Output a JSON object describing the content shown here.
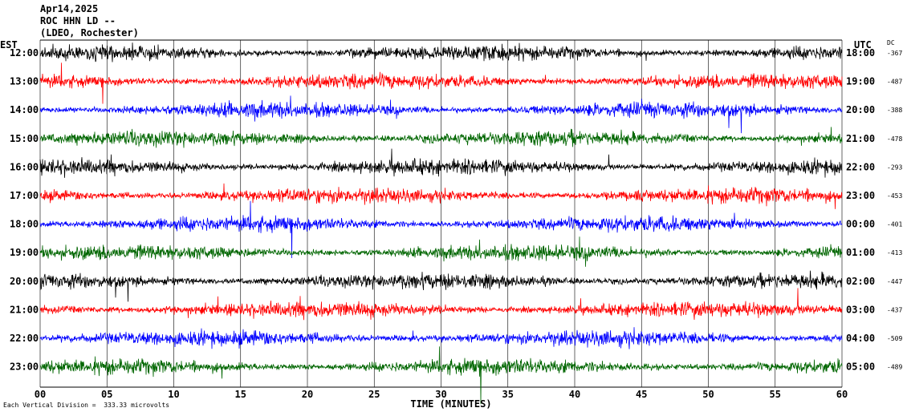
{
  "header": {
    "date": "Apr14,2025",
    "station": "ROC HHN LD --",
    "network": "(LDEO, Rochester)"
  },
  "left_axis_label": "EST",
  "right_axis_label": "UTC",
  "dc_label": "DC",
  "xlabel": "TIME (MINUTES)",
  "footer": {
    "scale_text": "Each Vertical Division =  333.33 microvolts"
  },
  "colors": {
    "black": "#000000",
    "red": "#ff0000",
    "blue": "#0000ff",
    "green": "#006600"
  },
  "chart_data": {
    "type": "line",
    "xlabel": "TIME (MINUTES)",
    "xlim": [
      0,
      60
    ],
    "x_ticks": [
      "00",
      "05",
      "10",
      "15",
      "20",
      "25",
      "30",
      "35",
      "40",
      "45",
      "50",
      "55",
      "60"
    ],
    "rows": [
      {
        "est": "12:00",
        "utc": "18:00",
        "dc": "-367",
        "color": "black"
      },
      {
        "est": "13:00",
        "utc": "19:00",
        "dc": "-487",
        "color": "red"
      },
      {
        "est": "14:00",
        "utc": "20:00",
        "dc": "-388",
        "color": "blue"
      },
      {
        "est": "15:00",
        "utc": "21:00",
        "dc": "-478",
        "color": "green"
      },
      {
        "est": "16:00",
        "utc": "22:00",
        "dc": "-293",
        "color": "black"
      },
      {
        "est": "17:00",
        "utc": "23:00",
        "dc": "-453",
        "color": "red"
      },
      {
        "est": "18:00",
        "utc": "00:00",
        "dc": "-401",
        "color": "blue"
      },
      {
        "est": "19:00",
        "utc": "01:00",
        "dc": "-413",
        "color": "green"
      },
      {
        "est": "20:00",
        "utc": "02:00",
        "dc": "-447",
        "color": "black"
      },
      {
        "est": "21:00",
        "utc": "03:00",
        "dc": "-437",
        "color": "red"
      },
      {
        "est": "22:00",
        "utc": "04:00",
        "dc": "-509",
        "color": "blue"
      },
      {
        "est": "23:00",
        "utc": "05:00",
        "dc": "-489",
        "color": "green"
      }
    ]
  }
}
